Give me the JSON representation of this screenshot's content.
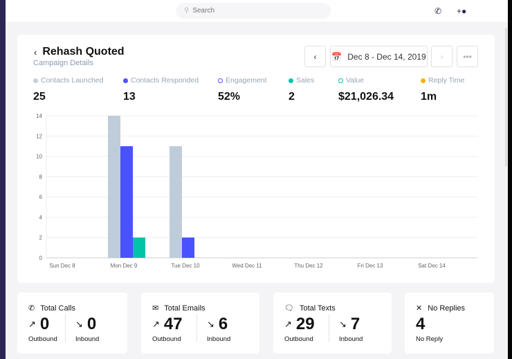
{
  "topbar": {
    "search_placeholder": "Search",
    "icons": [
      "phone-icon",
      "add-user-icon"
    ]
  },
  "campaign": {
    "title": "Rehash Quoted",
    "subtitle": "Campaign Details",
    "date_range": "Dec 8 - Dec 14, 2019"
  },
  "stats": [
    {
      "label": "Contacts Launched",
      "value": "25",
      "color": "#c8d0da",
      "marker": "dot"
    },
    {
      "label": "Contacts Responded",
      "value": "13",
      "color": "#4b52ff",
      "marker": "dot"
    },
    {
      "label": "Engagement",
      "value": "52%",
      "color": "#4b52ff",
      "marker": "ring"
    },
    {
      "label": "Sales",
      "value": "2",
      "color": "#00c4a7",
      "marker": "dot"
    },
    {
      "label": "Value",
      "value": "$21,026.34",
      "color": "#00c4a7",
      "marker": "ring"
    },
    {
      "label": "Reply Time",
      "value": "1m",
      "color": "#f5b400",
      "marker": "dot"
    }
  ],
  "chart_data": {
    "type": "bar",
    "categories": [
      "Sun Dec 8",
      "Mon Dec 9",
      "Tue Dec 10",
      "Wed Dec 11",
      "Thu Dec 12",
      "Fri Dec 13",
      "Sat Dec 14"
    ],
    "series": [
      {
        "values": [
          0,
          14,
          11,
          0,
          0,
          0,
          0
        ],
        "color": "#bfccd9"
      },
      {
        "values": [
          0,
          11,
          2,
          0,
          0,
          0,
          0
        ],
        "color": "#4a52ff"
      },
      {
        "values": [
          0,
          2,
          0,
          0,
          0,
          0,
          0
        ],
        "color": "#00c4a7"
      }
    ],
    "ylim": [
      0,
      14
    ],
    "yticks": [
      0,
      2,
      4,
      6,
      8,
      10,
      12,
      14
    ],
    "grid": true
  },
  "summary": {
    "calls": {
      "title": "Total Calls",
      "outbound": "0",
      "inbound": "0"
    },
    "emails": {
      "title": "Total Emails",
      "outbound": "47",
      "inbound": "6"
    },
    "texts": {
      "title": "Total Texts",
      "outbound": "29",
      "inbound": "7"
    },
    "noreplies": {
      "title": "No Replies",
      "value": "4",
      "label": "No Reply"
    },
    "outbound_label": "Outbound",
    "inbound_label": "Inbound"
  }
}
